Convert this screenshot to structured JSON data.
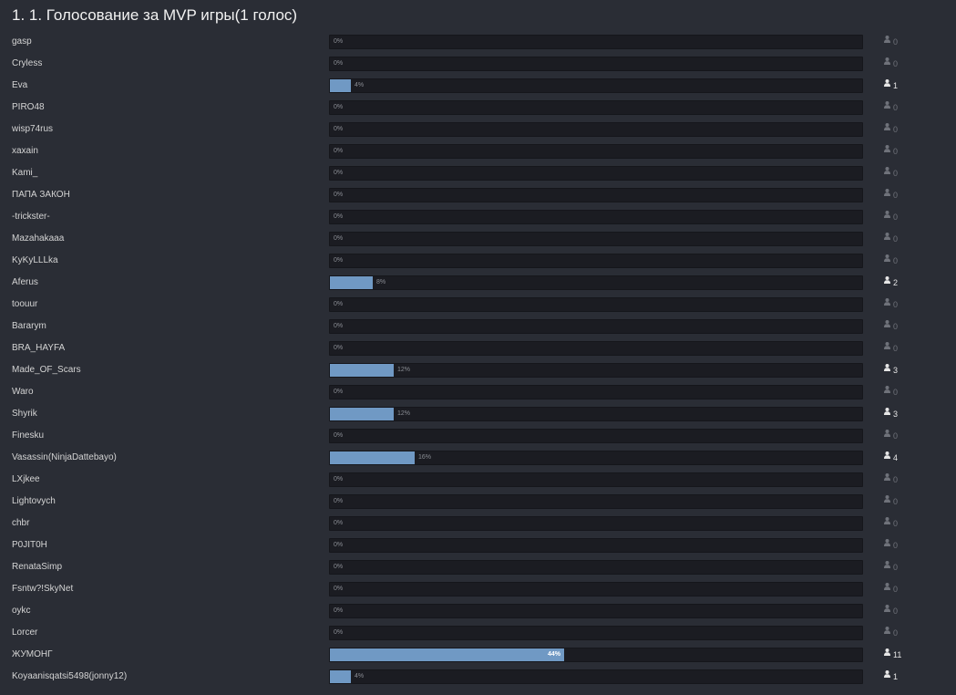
{
  "poll": {
    "title": "1. 1. Голосование за MVP игры(1 голос)",
    "colors": {
      "bar_fill": "#7099c4",
      "bar_track": "#1b1c22",
      "background": "#2a2d35"
    },
    "voter_icon": "user-icon",
    "choices": [
      {
        "label": "gasp",
        "percent": 0,
        "percent_text": "0%",
        "votes": "0"
      },
      {
        "label": "Cryless",
        "percent": 0,
        "percent_text": "0%",
        "votes": "0"
      },
      {
        "label": "Eva",
        "percent": 4,
        "percent_text": "4%",
        "votes": "1"
      },
      {
        "label": "PIRO48",
        "percent": 0,
        "percent_text": "0%",
        "votes": "0"
      },
      {
        "label": "wisp74rus",
        "percent": 0,
        "percent_text": "0%",
        "votes": "0"
      },
      {
        "label": "xaxain",
        "percent": 0,
        "percent_text": "0%",
        "votes": "0"
      },
      {
        "label": "Kami_",
        "percent": 0,
        "percent_text": "0%",
        "votes": "0"
      },
      {
        "label": "ПАПА ЗАКОН",
        "percent": 0,
        "percent_text": "0%",
        "votes": "0"
      },
      {
        "label": "-trickster-",
        "percent": 0,
        "percent_text": "0%",
        "votes": "0"
      },
      {
        "label": "Mazahakaaa",
        "percent": 0,
        "percent_text": "0%",
        "votes": "0"
      },
      {
        "label": "KyKyLLLka",
        "percent": 0,
        "percent_text": "0%",
        "votes": "0"
      },
      {
        "label": "Aferus",
        "percent": 8,
        "percent_text": "8%",
        "votes": "2"
      },
      {
        "label": "toouur",
        "percent": 0,
        "percent_text": "0%",
        "votes": "0"
      },
      {
        "label": "Bararym",
        "percent": 0,
        "percent_text": "0%",
        "votes": "0"
      },
      {
        "label": "BRA_HAYFA",
        "percent": 0,
        "percent_text": "0%",
        "votes": "0"
      },
      {
        "label": "Made_OF_Scars",
        "percent": 12,
        "percent_text": "12%",
        "votes": "3"
      },
      {
        "label": "Waro",
        "percent": 0,
        "percent_text": "0%",
        "votes": "0"
      },
      {
        "label": "Shyrik",
        "percent": 12,
        "percent_text": "12%",
        "votes": "3"
      },
      {
        "label": "Finesku",
        "percent": 0,
        "percent_text": "0%",
        "votes": "0"
      },
      {
        "label": "Vasassin(NinjaDattebayo)",
        "percent": 16,
        "percent_text": "16%",
        "votes": "4"
      },
      {
        "label": "LXjkee",
        "percent": 0,
        "percent_text": "0%",
        "votes": "0"
      },
      {
        "label": "Lightovych",
        "percent": 0,
        "percent_text": "0%",
        "votes": "0"
      },
      {
        "label": "chbr",
        "percent": 0,
        "percent_text": "0%",
        "votes": "0"
      },
      {
        "label": "P0JIT0H",
        "percent": 0,
        "percent_text": "0%",
        "votes": "0"
      },
      {
        "label": "RenataSimp",
        "percent": 0,
        "percent_text": "0%",
        "votes": "0"
      },
      {
        "label": "Fsntw?!SkyNet",
        "percent": 0,
        "percent_text": "0%",
        "votes": "0"
      },
      {
        "label": "oykc",
        "percent": 0,
        "percent_text": "0%",
        "votes": "0"
      },
      {
        "label": "Lorcer",
        "percent": 0,
        "percent_text": "0%",
        "votes": "0"
      },
      {
        "label": "ЖУМОНГ",
        "percent": 44,
        "percent_text": "44%",
        "votes": "11"
      },
      {
        "label": "Koyaanisqatsi5498(jonny12)",
        "percent": 4,
        "percent_text": "4%",
        "votes": "1"
      }
    ]
  }
}
